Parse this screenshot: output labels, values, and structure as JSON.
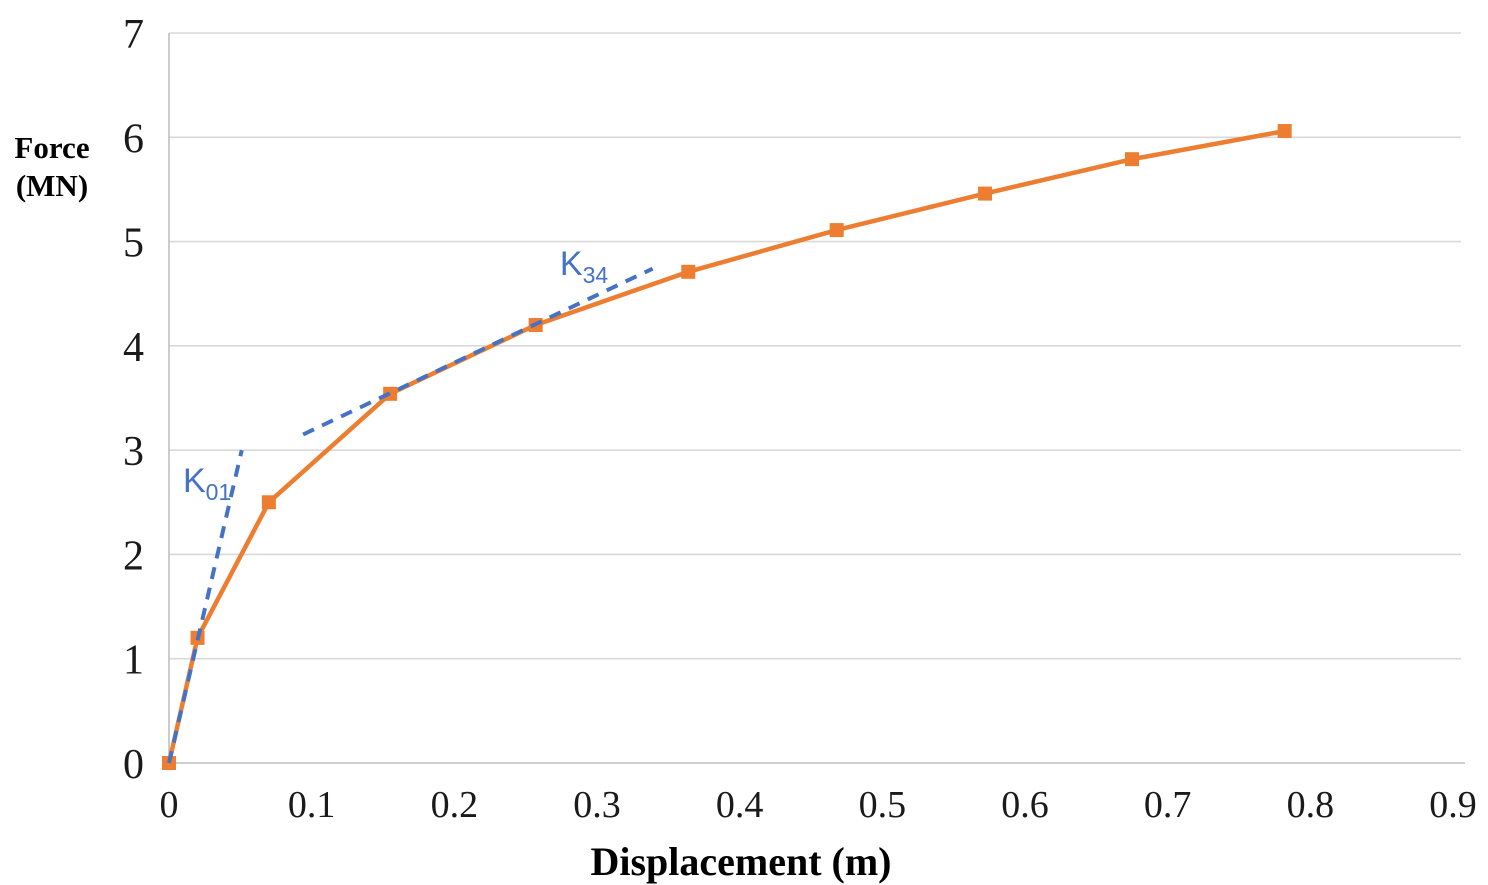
{
  "chart_data": {
    "type": "line",
    "title": "",
    "xlabel": "Displacement (m)",
    "ylabel_lines": [
      "Force",
      "(MN)"
    ],
    "xlim": [
      0,
      0.9
    ],
    "ylim": [
      0,
      7
    ],
    "grid": "horizontal-only",
    "legend": "none",
    "xticks": {
      "values": [
        0,
        0.1,
        0.2,
        0.3,
        0.4,
        0.5,
        0.6,
        0.7,
        0.8,
        0.9
      ],
      "labels": [
        "0",
        "0.1",
        "0.2",
        "0.3",
        "0.4",
        "0.5",
        "0.6",
        "0.7",
        "0.8",
        "0.9"
      ]
    },
    "yticks": {
      "values": [
        0,
        1,
        2,
        3,
        4,
        5,
        6,
        7
      ],
      "labels": [
        "0",
        "1",
        "2",
        "3",
        "4",
        "5",
        "6",
        "7"
      ]
    },
    "series": [
      {
        "name": "force-displacement-curve",
        "color": "#ED7D31",
        "style": "solid",
        "marker": "square",
        "points": [
          [
            0,
            0
          ],
          [
            0.02,
            1.2
          ],
          [
            0.07,
            2.5
          ],
          [
            0.155,
            3.54
          ],
          [
            0.257,
            4.2
          ],
          [
            0.364,
            4.71
          ],
          [
            0.468,
            5.11
          ],
          [
            0.572,
            5.46
          ],
          [
            0.675,
            5.79
          ],
          [
            0.782,
            6.06
          ]
        ]
      },
      {
        "name": "K01-initial-stiffness-line",
        "color": "#4472C4",
        "style": "dashed",
        "marker": "none",
        "points": [
          [
            0,
            0
          ],
          [
            0.051,
            3.0
          ]
        ]
      },
      {
        "name": "K34-secant-stiffness-line",
        "color": "#4472C4",
        "style": "dashed",
        "marker": "none",
        "points": [
          [
            0.094,
            3.15
          ],
          [
            0.339,
            4.74
          ]
        ]
      }
    ],
    "annotations": [
      {
        "name": "K01",
        "main": "K",
        "sub": "01",
        "x": 0.0098,
        "y": 2.6,
        "color": "#4472C4"
      },
      {
        "name": "K34",
        "main": "K",
        "sub": "34",
        "x": 0.274,
        "y": 4.68,
        "color": "#4472C4"
      }
    ],
    "colors": {
      "curve": "#ED7D31",
      "stiffness_lines": "#4472C4",
      "gridline": "#D9D9D9",
      "axis_line": "#BFBFBF",
      "tick_text": "#1a1a1a",
      "title_text": "#000000",
      "background": "#FFFFFF"
    }
  }
}
